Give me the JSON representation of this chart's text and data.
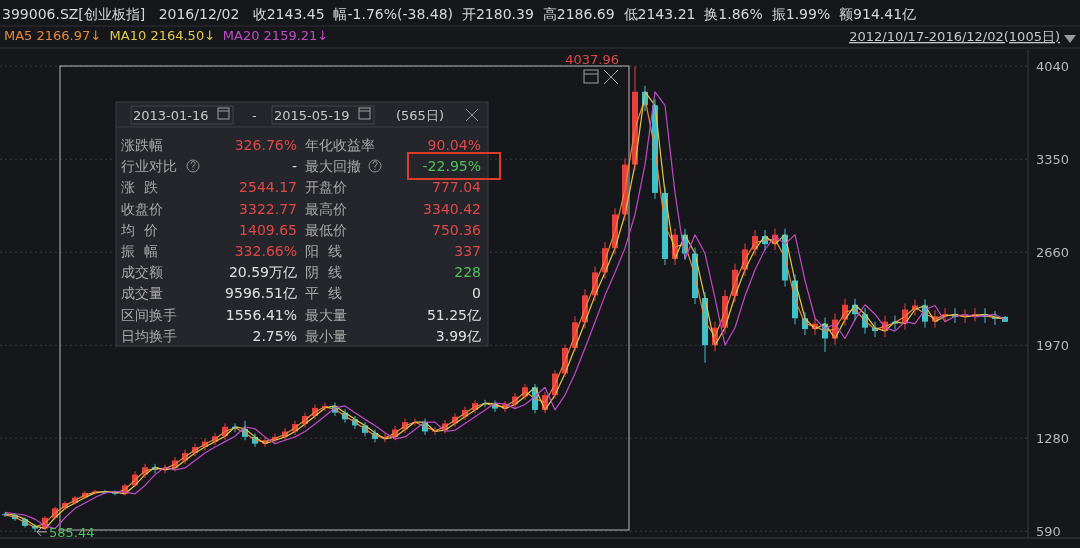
{
  "chart_data": [
    {
      "type": "candlestick",
      "title": "399006.SZ[创业板指]   2016/12/02   收2143.45  幅-1.76%(-38.48)  开2180.39  高2186.69  低2143.21  换1.86%  振1.99%  额914.41亿",
      "subtitle": "2012/10/17-2016/12/02(1005日)",
      "categories": [
        null,
        null,
        null,
        null,
        null,
        null,
        null,
        null,
        null,
        null,
        null,
        null,
        null,
        null,
        null,
        null,
        null,
        null,
        null,
        null,
        null,
        null,
        null,
        null,
        null,
        null,
        null,
        null,
        null,
        null,
        null,
        null,
        null,
        null,
        null,
        null,
        null,
        null,
        null,
        null,
        null,
        null,
        null,
        null,
        null,
        null,
        null,
        null,
        null,
        null,
        null,
        null,
        null,
        null,
        null,
        null,
        null,
        null,
        null,
        null,
        null,
        null,
        null,
        null,
        null,
        null,
        null,
        null,
        null,
        null,
        null,
        null,
        null,
        null,
        null,
        null,
        null,
        null,
        null,
        null,
        null,
        null,
        null,
        null,
        null,
        null,
        null,
        null,
        null,
        null,
        null,
        null,
        null,
        null,
        null,
        null,
        null,
        null,
        null,
        null,
        null
      ],
      "ohlc": [
        [
          716,
          728,
          697,
          709
        ],
        [
          709,
          721,
          668,
          680
        ],
        [
          680,
          692,
          618,
          630
        ],
        [
          630,
          642,
          585.44,
          610
        ],
        [
          610,
          702,
          598,
          690
        ],
        [
          690,
          772,
          678,
          760
        ],
        [
          760,
          812,
          748,
          800
        ],
        [
          800,
          852,
          788,
          840
        ],
        [
          840,
          887,
          828,
          875
        ],
        [
          875,
          897,
          863,
          885
        ],
        [
          885,
          897,
          868,
          880
        ],
        [
          880,
          892,
          856,
          868
        ],
        [
          868,
          942,
          856,
          930
        ],
        [
          930,
          1035,
          918,
          1010
        ],
        [
          1010,
          1090,
          985,
          1065
        ],
        [
          1065,
          1090,
          1020,
          1045
        ],
        [
          1045,
          1085,
          1020,
          1060
        ],
        [
          1060,
          1140,
          1035,
          1115
        ],
        [
          1115,
          1195,
          1090,
          1170
        ],
        [
          1170,
          1240,
          1145,
          1215
        ],
        [
          1215,
          1280,
          1190,
          1255
        ],
        [
          1255,
          1320,
          1230,
          1295
        ],
        [
          1295,
          1390,
          1270,
          1365
        ],
        [
          1365,
          1390,
          1325,
          1350
        ],
        [
          1350,
          1410,
          1265,
          1290
        ],
        [
          1290,
          1315,
          1215,
          1240
        ],
        [
          1240,
          1290,
          1215,
          1265
        ],
        [
          1265,
          1315,
          1240,
          1290
        ],
        [
          1290,
          1355,
          1265,
          1330
        ],
        [
          1330,
          1410,
          1305,
          1385
        ],
        [
          1385,
          1470,
          1360,
          1445
        ],
        [
          1445,
          1530,
          1420,
          1505
        ],
        [
          1505,
          1545,
          1480,
          1520
        ],
        [
          1520,
          1545,
          1445,
          1470
        ],
        [
          1470,
          1495,
          1395,
          1420
        ],
        [
          1420,
          1445,
          1350,
          1375
        ],
        [
          1375,
          1400,
          1295,
          1320
        ],
        [
          1320,
          1345,
          1250,
          1275
        ],
        [
          1275,
          1315,
          1250,
          1290
        ],
        [
          1290,
          1370,
          1265,
          1345
        ],
        [
          1345,
          1425,
          1320,
          1400
        ],
        [
          1400,
          1425,
          1375,
          1400
        ],
        [
          1400,
          1425,
          1305,
          1330
        ],
        [
          1330,
          1365,
          1305,
          1340
        ],
        [
          1340,
          1415,
          1315,
          1390
        ],
        [
          1390,
          1465,
          1365,
          1440
        ],
        [
          1440,
          1515,
          1415,
          1490
        ],
        [
          1490,
          1565,
          1465,
          1540
        ],
        [
          1540,
          1565,
          1510,
          1535
        ],
        [
          1535,
          1560,
          1475,
          1500
        ],
        [
          1500,
          1555,
          1475,
          1530
        ],
        [
          1530,
          1615,
          1505,
          1590
        ],
        [
          1590,
          1683,
          1565,
          1658
        ],
        [
          1658,
          1683,
          1465,
          1490
        ],
        [
          1490,
          1625,
          1465,
          1600
        ],
        [
          1600,
          1785,
          1575,
          1760
        ],
        [
          1760,
          1975,
          1735,
          1950
        ],
        [
          1950,
          2185,
          1925,
          2140
        ],
        [
          2140,
          2385,
          2095,
          2340
        ],
        [
          2340,
          2555,
          2295,
          2510
        ],
        [
          2510,
          2735,
          2465,
          2690
        ],
        [
          2690,
          2985,
          2645,
          2940
        ],
        [
          2940,
          3355,
          2895,
          3310
        ],
        [
          3310,
          4037.96,
          3265,
          3850
        ],
        [
          3850,
          3895,
          3705,
          3750
        ],
        [
          3750,
          3795,
          3055,
          3100
        ],
        [
          3100,
          3145,
          2565,
          2610
        ],
        [
          2610,
          2835,
          2565,
          2790
        ],
        [
          2790,
          2835,
          2605,
          2650
        ],
        [
          2650,
          2695,
          2275,
          2320
        ],
        [
          2320,
          2365,
          1840,
          1970
        ],
        [
          1970,
          2145,
          1925,
          2100
        ],
        [
          2100,
          2380,
          2055,
          2335
        ],
        [
          2335,
          2575,
          2290,
          2530
        ],
        [
          2530,
          2725,
          2485,
          2680
        ],
        [
          2680,
          2825,
          2635,
          2780
        ],
        [
          2780,
          2825,
          2675,
          2720
        ],
        [
          2720,
          2835,
          2675,
          2790
        ],
        [
          2790,
          2835,
          2405,
          2450
        ],
        [
          2450,
          2495,
          2125,
          2170
        ],
        [
          2170,
          2215,
          2045,
          2090
        ],
        [
          2090,
          2175,
          2045,
          2130
        ],
        [
          2130,
          2175,
          1920,
          2020
        ],
        [
          2020,
          2205,
          1975,
          2160
        ],
        [
          2160,
          2315,
          2115,
          2270
        ],
        [
          2270,
          2315,
          2155,
          2200
        ],
        [
          2200,
          2245,
          2055,
          2100
        ],
        [
          2100,
          2145,
          2030,
          2075
        ],
        [
          2075,
          2190,
          2030,
          2145
        ],
        [
          2145,
          2190,
          2085,
          2130
        ],
        [
          2130,
          2280,
          2085,
          2235
        ],
        [
          2235,
          2310,
          2190,
          2265
        ],
        [
          2265,
          2310,
          2100,
          2145
        ],
        [
          2145,
          2230,
          2100,
          2185
        ],
        [
          2185,
          2245,
          2140,
          2200
        ],
        [
          2200,
          2245,
          2135,
          2180
        ],
        [
          2180,
          2235,
          2135,
          2190
        ],
        [
          2190,
          2245,
          2145,
          2200
        ],
        [
          2200,
          2245,
          2135,
          2180
        ],
        [
          2180,
          2225,
          2120,
          2165
        ],
        [
          2180.39,
          2186.69,
          2143.21,
          2143.45
        ]
      ],
      "series": [
        {
          "name": "MA5 2166.97↓",
          "type": "line",
          "color": "#e8893a",
          "values": [
            712,
            695,
            655,
            620,
            650,
            725,
            780,
            820,
            858,
            880,
            883,
            874,
            899,
            970,
            1038,
            1055,
            1053,
            1088,
            1143,
            1193,
            1235,
            1275,
            1330,
            1358,
            1320,
            1265,
            1253,
            1278,
            1310,
            1358,
            1415,
            1475,
            1513,
            1495,
            1445,
            1398,
            1348,
            1298,
            1283,
            1318,
            1373,
            1400,
            1365,
            1335,
            1365,
            1415,
            1465,
            1515,
            1538,
            1518,
            1515,
            1560,
            1624,
            1574,
            1545,
            1680,
            1855,
            2045,
            2240,
            2425,
            2600,
            2815,
            3125,
            3580,
            3800,
            3425,
            2855,
            2700,
            2720,
            2485,
            2145,
            2035,
            2218,
            2433,
            2605,
            2730,
            2750,
            2755,
            2620,
            2310,
            2130,
            2110,
            2075,
            2090,
            2215,
            2235,
            2150,
            2088,
            2110,
            2138,
            2183,
            2250,
            2205,
            2165,
            2193,
            2190,
            2185,
            2195,
            2190,
            2173,
            2167
          ]
        },
        {
          "name": "MA10 2164.50↓",
          "type": "line",
          "color": "#e3c94a",
          "values": [
            720,
            709,
            680,
            630,
            610,
            690,
            760,
            800,
            840,
            875,
            885,
            880,
            868,
            930,
            1010,
            1065,
            1045,
            1060,
            1115,
            1170,
            1215,
            1255,
            1295,
            1365,
            1350,
            1290,
            1240,
            1265,
            1290,
            1330,
            1385,
            1445,
            1505,
            1520,
            1470,
            1420,
            1375,
            1320,
            1275,
            1290,
            1345,
            1400,
            1400,
            1330,
            1340,
            1390,
            1440,
            1490,
            1540,
            1535,
            1500,
            1530,
            1590,
            1658,
            1490,
            1600,
            1760,
            1950,
            2140,
            2340,
            2510,
            2690,
            2940,
            3310,
            3850,
            3750,
            3100,
            2610,
            2790,
            2650,
            2320,
            1970,
            2100,
            2335,
            2530,
            2680,
            2780,
            2720,
            2790,
            2450,
            2170,
            2090,
            2130,
            2020,
            2160,
            2270,
            2200,
            2100,
            2075,
            2145,
            2130,
            2235,
            2265,
            2145,
            2185,
            2200,
            2180,
            2190,
            2200,
            2180,
            2164
          ]
        },
        {
          "name": "MA20 2159.21↓",
          "type": "line",
          "color": "#c04ac8",
          "values": [
            730,
            720,
            709,
            680,
            630,
            610,
            690,
            760,
            800,
            840,
            875,
            885,
            880,
            868,
            930,
            1010,
            1065,
            1045,
            1060,
            1115,
            1170,
            1215,
            1255,
            1295,
            1365,
            1350,
            1290,
            1240,
            1265,
            1290,
            1330,
            1385,
            1445,
            1505,
            1520,
            1470,
            1420,
            1375,
            1320,
            1275,
            1290,
            1345,
            1400,
            1400,
            1330,
            1340,
            1390,
            1440,
            1490,
            1540,
            1535,
            1500,
            1530,
            1590,
            1658,
            1490,
            1600,
            1760,
            1950,
            2140,
            2340,
            2510,
            2690,
            2940,
            3310,
            3850,
            3750,
            3100,
            2610,
            2790,
            2650,
            2320,
            1970,
            2100,
            2335,
            2530,
            2680,
            2780,
            2720,
            2790,
            2450,
            2170,
            2090,
            2130,
            2020,
            2160,
            2270,
            2200,
            2100,
            2075,
            2145,
            2130,
            2235,
            2265,
            2145,
            2185,
            2200,
            2180,
            2190,
            2200,
            2159
          ]
        }
      ],
      "ylim": [
        540,
        4160
      ],
      "yticks": [
        590,
        1280,
        1970,
        2660,
        3350,
        4040
      ],
      "grid": "y",
      "legend": "top left",
      "annotations": [
        "4037.96",
        "585.44"
      ]
    },
    {
      "type": "other",
      "annotations": [
        "2013-01-16",
        "-",
        "2015-05-19",
        "(565日)",
        "涨跌幅",
        "326.76%",
        "年化收益率",
        "90.04%",
        "行业对比",
        "-",
        "最大回撤",
        "-22.95%",
        "涨  跌",
        "2544.17",
        "开盘价",
        "777.04",
        "收盘价",
        "3322.77",
        "最高价",
        "3340.42",
        "均  价",
        "1409.65",
        "最低价",
        "750.36",
        "振  幅",
        "332.66%",
        "阳  线",
        "337",
        "成交额",
        "20.59万亿",
        "阴  线",
        "228",
        "成交量",
        "9596.51亿",
        "平  线",
        "0",
        "区间换手",
        "1556.41%",
        "最大量",
        "51.25亿",
        "日均换手",
        "2.75%",
        "最小量",
        "3.99亿"
      ],
      "colors": [
        "#c8c8c8",
        "#c8c8c8",
        "#c8c8c8",
        "#c8c8c8",
        "#a8a8a8",
        "#e04848",
        "#a8a8a8",
        "#e04848",
        "#a8a8a8",
        "#e0e0e0",
        "#a8a8a8",
        "#4cc25a",
        "#a8a8a8",
        "#e04848",
        "#a8a8a8",
        "#e04848",
        "#a8a8a8",
        "#e04848",
        "#a8a8a8",
        "#e04848",
        "#a8a8a8",
        "#e04848",
        "#a8a8a8",
        "#e04848",
        "#a8a8a8",
        "#e04848",
        "#a8a8a8",
        "#e04848",
        "#a8a8a8",
        "#e0e0e0",
        "#a8a8a8",
        "#4cc25a",
        "#a8a8a8",
        "#e0e0e0",
        "#a8a8a8",
        "#e0e0e0",
        "#a8a8a8",
        "#e0e0e0",
        "#a8a8a8",
        "#e0e0e0",
        "#a8a8a8",
        "#e0e0e0",
        "#a8a8a8",
        "#e0e0e0"
      ]
    }
  ]
}
